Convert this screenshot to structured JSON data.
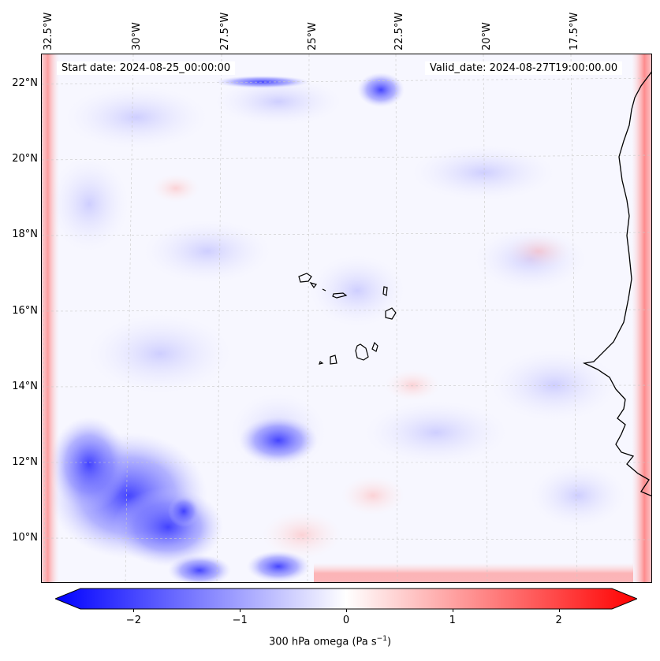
{
  "map": {
    "start_label": "Start date: 2024-08-25_00:00:00",
    "valid_label": "Valid_date: 2024-08-27T19:00:00.00",
    "longitude_labels": [
      "32.5°W",
      "30°W",
      "27.5°W",
      "25°W",
      "22.5°W",
      "20°W",
      "17.5°W"
    ],
    "latitude_labels": [
      "22°N",
      "20°N",
      "18°N",
      "16°N",
      "14°N",
      "12°N",
      "10°N"
    ],
    "field": "300 hPa omega",
    "colormap": "bwr",
    "colors": {
      "negative": "#0000ff",
      "zero": "#ffffff",
      "positive": "#ff0000",
      "gridline": "#bbbbbb",
      "coastline": "#000000"
    }
  },
  "colorbar": {
    "ticks": [
      "−2",
      "−1",
      "0",
      "1",
      "2"
    ],
    "range": [
      -2.75,
      2.75
    ],
    "label_text": "300 hPa omega (Pa s",
    "label_exp": "−1",
    "label_end": ")"
  }
}
